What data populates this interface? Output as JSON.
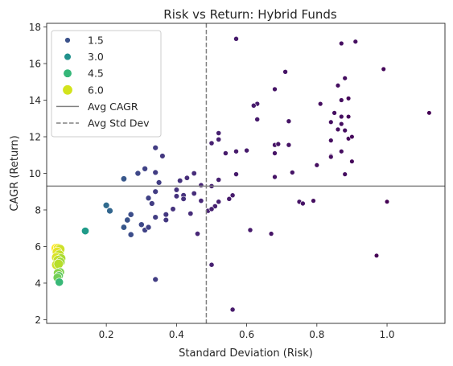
{
  "chart_data": {
    "type": "scatter",
    "title": "Risk vs Return: Hybrid Funds",
    "xlabel": "Standard Deviation (Risk)",
    "ylabel": "CAGR (Return)",
    "xlim": [
      0.03,
      1.165
    ],
    "ylim": [
      1.8,
      18.2
    ],
    "xticks": [
      0.2,
      0.4,
      0.6,
      0.8,
      1.0
    ],
    "xtick_labels": [
      "0.2",
      "0.4",
      "0.6",
      "0.8",
      "1.0"
    ],
    "yticks": [
      2,
      4,
      6,
      8,
      10,
      12,
      14,
      16,
      18
    ],
    "ytick_labels": [
      "2",
      "4",
      "6",
      "8",
      "10",
      "12",
      "14",
      "16",
      "18"
    ],
    "grid": false,
    "legend_position": "upper-left",
    "color_scale": "viridis",
    "size_range": [
      0.5,
      6.0
    ],
    "legend": [
      {
        "kind": "size",
        "label": "1.5",
        "value": 1.5,
        "color": "#3b528b"
      },
      {
        "kind": "size",
        "label": "3.0",
        "value": 3.0,
        "color": "#21918c"
      },
      {
        "kind": "size",
        "label": "4.5",
        "value": 4.5,
        "color": "#35b779"
      },
      {
        "kind": "size",
        "label": "6.0",
        "value": 6.0,
        "color": "#d3e31c"
      },
      {
        "kind": "line",
        "label": "Avg CAGR",
        "color": "#808080",
        "dash": "solid"
      },
      {
        "kind": "line",
        "label": "Avg Std Dev",
        "color": "#808080",
        "dash": "dashed"
      }
    ],
    "reference_lines": {
      "avg_cagr": 9.3,
      "avg_std_dev": 0.485
    },
    "points": [
      [
        0.57,
        17.35,
        0.9
      ],
      [
        0.87,
        17.1,
        0.7
      ],
      [
        0.91,
        17.2,
        0.7
      ],
      [
        0.99,
        15.7,
        0.6
      ],
      [
        0.71,
        15.55,
        0.8
      ],
      [
        0.88,
        15.2,
        0.7
      ],
      [
        0.86,
        14.8,
        0.7
      ],
      [
        0.68,
        14.6,
        0.8
      ],
      [
        0.87,
        14.0,
        0.7
      ],
      [
        0.89,
        14.1,
        0.6
      ],
      [
        0.63,
        13.8,
        0.9
      ],
      [
        0.62,
        13.7,
        0.9
      ],
      [
        0.81,
        13.8,
        0.7
      ],
      [
        0.85,
        13.3,
        0.7
      ],
      [
        0.87,
        13.1,
        0.7
      ],
      [
        0.89,
        13.1,
        0.6
      ],
      [
        1.12,
        13.3,
        0.5
      ],
      [
        0.63,
        12.95,
        0.9
      ],
      [
        0.72,
        12.85,
        0.8
      ],
      [
        0.84,
        12.8,
        0.7
      ],
      [
        0.87,
        12.7,
        0.7
      ],
      [
        0.86,
        12.4,
        0.7
      ],
      [
        0.88,
        12.35,
        0.7
      ],
      [
        0.52,
        12.2,
        1.0
      ],
      [
        0.52,
        11.85,
        1.0
      ],
      [
        0.68,
        11.55,
        0.8
      ],
      [
        0.69,
        11.6,
        0.8
      ],
      [
        0.72,
        11.55,
        0.8
      ],
      [
        0.5,
        11.65,
        1.0
      ],
      [
        0.57,
        11.2,
        0.9
      ],
      [
        0.6,
        11.25,
        0.9
      ],
      [
        0.54,
        11.1,
        0.9
      ],
      [
        0.68,
        11.1,
        0.8
      ],
      [
        0.87,
        11.2,
        0.7
      ],
      [
        0.84,
        11.8,
        0.7
      ],
      [
        0.89,
        11.9,
        0.6
      ],
      [
        0.9,
        12.0,
        0.6
      ],
      [
        0.84,
        10.95,
        0.7
      ],
      [
        0.84,
        10.9,
        0.7
      ],
      [
        0.8,
        10.45,
        0.7
      ],
      [
        0.9,
        10.65,
        0.6
      ],
      [
        0.73,
        10.05,
        0.8
      ],
      [
        0.88,
        9.95,
        0.7
      ],
      [
        0.57,
        9.95,
        0.9
      ],
      [
        0.68,
        9.8,
        0.8
      ],
      [
        0.52,
        9.65,
        1.0
      ],
      [
        0.34,
        11.4,
        1.5
      ],
      [
        0.36,
        10.95,
        1.4
      ],
      [
        0.31,
        10.25,
        1.6
      ],
      [
        0.29,
        10.0,
        1.7
      ],
      [
        0.34,
        10.05,
        1.5
      ],
      [
        0.25,
        9.7,
        2.0
      ],
      [
        0.35,
        9.5,
        1.5
      ],
      [
        0.45,
        10.0,
        1.2
      ],
      [
        0.43,
        9.75,
        1.2
      ],
      [
        0.41,
        9.6,
        1.3
      ],
      [
        0.47,
        9.35,
        1.1
      ],
      [
        0.5,
        9.3,
        1.0
      ],
      [
        0.34,
        9.0,
        1.5
      ],
      [
        0.4,
        9.1,
        1.3
      ],
      [
        0.45,
        8.9,
        1.2
      ],
      [
        0.42,
        8.8,
        1.3
      ],
      [
        0.4,
        8.75,
        1.3
      ],
      [
        0.32,
        8.65,
        1.6
      ],
      [
        0.33,
        8.35,
        1.5
      ],
      [
        0.42,
        8.6,
        1.3
      ],
      [
        0.47,
        8.5,
        1.1
      ],
      [
        0.55,
        8.6,
        0.9
      ],
      [
        0.56,
        8.8,
        0.9
      ],
      [
        0.52,
        8.45,
        1.0
      ],
      [
        0.51,
        8.2,
        1.0
      ],
      [
        0.49,
        7.95,
        1.0
      ],
      [
        0.5,
        8.05,
        1.0
      ],
      [
        0.2,
        8.25,
        2.4
      ],
      [
        0.21,
        7.95,
        2.3
      ],
      [
        0.39,
        8.05,
        1.3
      ],
      [
        0.37,
        7.75,
        1.4
      ],
      [
        0.34,
        7.6,
        1.5
      ],
      [
        0.27,
        7.75,
        1.8
      ],
      [
        0.26,
        7.45,
        1.9
      ],
      [
        0.37,
        7.45,
        1.4
      ],
      [
        0.44,
        7.8,
        1.2
      ],
      [
        0.3,
        7.2,
        1.7
      ],
      [
        0.31,
        6.9,
        1.6
      ],
      [
        0.25,
        7.05,
        2.0
      ],
      [
        0.32,
        7.05,
        1.6
      ],
      [
        0.27,
        6.65,
        1.8
      ],
      [
        0.46,
        6.7,
        1.1
      ],
      [
        0.14,
        6.85,
        3.5
      ],
      [
        0.75,
        8.45,
        0.8
      ],
      [
        0.76,
        8.35,
        0.8
      ],
      [
        0.79,
        8.5,
        0.7
      ],
      [
        1.0,
        8.45,
        0.5
      ],
      [
        0.61,
        6.9,
        0.9
      ],
      [
        0.67,
        6.7,
        0.8
      ],
      [
        0.97,
        5.5,
        0.5
      ],
      [
        0.5,
        5.0,
        1.0
      ],
      [
        0.34,
        4.2,
        1.5
      ],
      [
        0.56,
        2.55,
        0.9
      ],
      [
        0.057,
        5.9,
        6.0
      ],
      [
        0.063,
        5.9,
        5.9
      ],
      [
        0.068,
        5.85,
        5.6
      ],
      [
        0.06,
        5.7,
        5.8
      ],
      [
        0.066,
        5.55,
        5.5
      ],
      [
        0.058,
        5.4,
        5.7
      ],
      [
        0.071,
        5.35,
        5.3
      ],
      [
        0.062,
        5.25,
        5.5
      ],
      [
        0.069,
        5.15,
        5.2
      ],
      [
        0.058,
        5.0,
        5.6
      ],
      [
        0.064,
        5.05,
        5.4
      ],
      [
        0.068,
        4.6,
        4.9
      ],
      [
        0.062,
        4.55,
        5.0
      ],
      [
        0.065,
        4.4,
        4.6
      ],
      [
        0.061,
        4.3,
        4.8
      ],
      [
        0.066,
        4.05,
        4.2
      ]
    ]
  }
}
